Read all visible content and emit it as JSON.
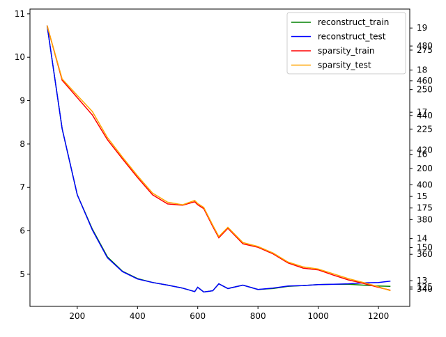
{
  "chart_data": {
    "type": "line",
    "x": [
      100,
      150,
      200,
      250,
      300,
      350,
      400,
      450,
      500,
      550,
      590,
      600,
      620,
      650,
      670,
      700,
      750,
      800,
      850,
      900,
      950,
      1000,
      1050,
      1100,
      1150,
      1200,
      1240
    ],
    "series": [
      {
        "name": "reconstruct_train",
        "color": "#008000",
        "values": [
          10.73,
          8.35,
          6.83,
          6.04,
          5.4,
          5.07,
          4.9,
          4.81,
          4.75,
          4.68,
          4.6,
          4.7,
          4.59,
          4.62,
          4.78,
          4.67,
          4.75,
          4.65,
          4.67,
          4.72,
          4.74,
          4.76,
          4.77,
          4.77,
          4.75,
          4.73,
          4.72
        ]
      },
      {
        "name": "reconstruct_test",
        "color": "#0000ff",
        "values": [
          10.73,
          8.35,
          6.83,
          6.02,
          5.38,
          5.06,
          4.89,
          4.81,
          4.75,
          4.68,
          4.6,
          4.7,
          4.59,
          4.62,
          4.78,
          4.67,
          4.75,
          4.65,
          4.68,
          4.73,
          4.74,
          4.76,
          4.77,
          4.78,
          4.8,
          4.81,
          4.84
        ]
      },
      {
        "name": "sparsity_train",
        "color": "#ff0000",
        "values": [
          10.73,
          9.47,
          9.07,
          8.67,
          8.1,
          7.66,
          7.23,
          6.83,
          6.62,
          6.59,
          6.67,
          6.6,
          6.51,
          6.1,
          5.84,
          6.06,
          5.7,
          5.62,
          5.47,
          5.26,
          5.14,
          5.1,
          4.98,
          4.87,
          4.79,
          4.7,
          4.63
        ]
      },
      {
        "name": "sparsity_test",
        "color": "#ffa500",
        "values": [
          10.73,
          9.5,
          9.12,
          8.75,
          8.15,
          7.7,
          7.27,
          6.87,
          6.66,
          6.6,
          6.7,
          6.63,
          6.54,
          6.13,
          5.87,
          6.08,
          5.73,
          5.64,
          5.49,
          5.28,
          5.17,
          5.12,
          5.01,
          4.9,
          4.81,
          4.71,
          4.62
        ]
      }
    ],
    "xlim": [
      43,
      1304
    ],
    "xticks": [
      200,
      400,
      600,
      800,
      1000,
      1200
    ],
    "ylim": [
      4.26,
      11.11
    ],
    "yticks": [
      5,
      6,
      7,
      8,
      9,
      10,
      11
    ],
    "right_axes": [
      {
        "ylim": [
          12.39,
          19.45
        ],
        "yticks": [
          13,
          14,
          15,
          16,
          17,
          18,
          19
        ]
      },
      {
        "ylim": [
          112.7,
          301
        ],
        "yticks": [
          125,
          150,
          175,
          200,
          225,
          250,
          275
        ]
      },
      {
        "ylim": [
          330,
          501.3
        ],
        "yticks": [
          340,
          360,
          380,
          400,
          420,
          440,
          460,
          480
        ]
      }
    ],
    "legend": "upper right"
  }
}
